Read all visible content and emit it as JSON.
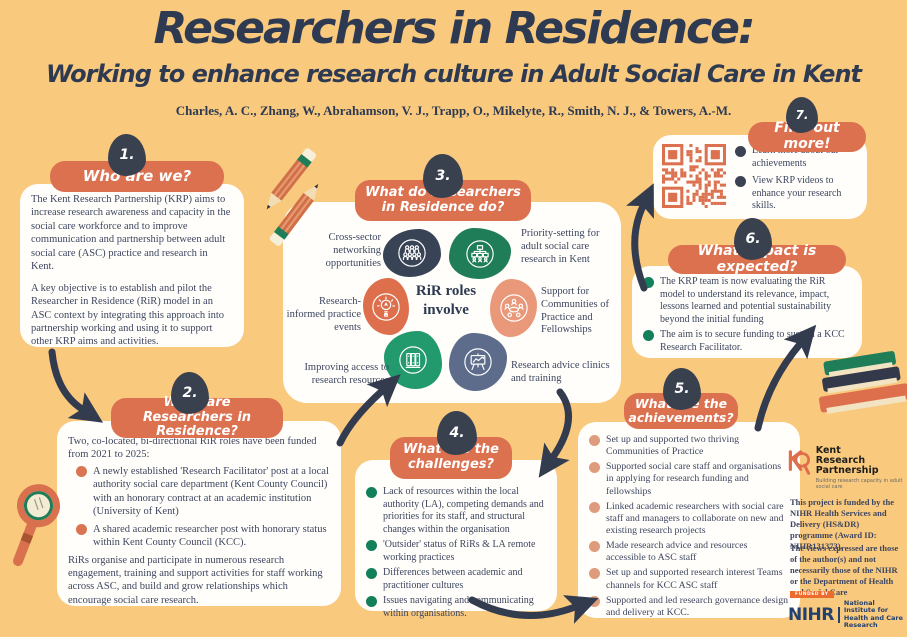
{
  "poster": {
    "title": "Researchers in Residence:",
    "subtitle": "Working to enhance research culture in Adult Social Care in Kent",
    "authors": "Charles, A. C., Zhang, W., Abrahamson, V. J., Trapp, O., Mikelyte, R., Smith, N. J., & Towers, A.-M."
  },
  "colors": {
    "background": "#F9C97E",
    "terracotta": "#DC7150",
    "navy": "#39414F",
    "green": "#1F7D58",
    "salmon": "#E9987A",
    "blue_grey": "#5C6C8A"
  },
  "sections": {
    "who": {
      "number": "1.",
      "heading": "Who are we?",
      "para1": "The Kent Research Partnership (KRP) aims to increase research awareness and capacity in the social care workforce and to improve communication and partnership between adult social care (ASC) practice and research in Kent.",
      "para2": "A key objective is to establish and pilot the Researcher in Residence (RiR) model in an ASC context by integrating this approach into partnership working and using it to support other KRP aims and activities."
    },
    "roles": {
      "number": "2.",
      "heading": "What are Researchers in Residence?",
      "intro": "Two, co-located, bi-directional RiR roles have been funded from 2021 to 2025:",
      "bullets": [
        "A newly established 'Research Facilitator' post at a local authority social care department (Kent County Council) with an honorary contract at an academic institution (University of Kent)",
        "A shared academic researcher post with honorary status within Kent County Council (KCC)."
      ],
      "outro": "RiRs organise and participate in numerous research engagement, training and support activities for staff working across ASC, and build and grow relationships which encourage social care research."
    },
    "activities": {
      "number": "3.",
      "heading": "What do Researchers in Residence do?",
      "center": "RiR roles involve",
      "items": [
        {
          "label": "Cross-sector networking opportunities",
          "icon": "crowd-icon"
        },
        {
          "label": "Priority-setting for adult social care research in Kent",
          "icon": "org-chart-icon"
        },
        {
          "label": "Research-informed practice events",
          "icon": "lightbulb-icon"
        },
        {
          "label": "Support for Communities of Practice and Fellowships",
          "icon": "community-icon"
        },
        {
          "label": "Improving access to research resources",
          "icon": "books-icon"
        },
        {
          "label": "Research advice clinics and training",
          "icon": "presentation-icon"
        }
      ]
    },
    "challenges": {
      "number": "4.",
      "heading": "What are the challenges?",
      "bullets": [
        "Lack of resources within the local authority (LA), competing demands and priorities for its staff, and structural changes within the organisation",
        "'Outsider' status of RiRs & LA remote working practices",
        "Differences between academic and practitioner cultures",
        "Issues navigating and communicating within organisations."
      ]
    },
    "achievements": {
      "number": "5.",
      "heading": "What are the achievements?",
      "bullets": [
        "Set up and supported two thriving Communities of Practice",
        "Supported social care staff and organisations in applying for research funding and fellowships",
        "Linked academic researchers with social care staff and managers to collaborate on new and existing research projects",
        "Made research advice and resources accessible to ASC staff",
        "Set up and supported research interest Teams channels for KCC ASC staff",
        "Supported and led research governance design and delivery at KCC."
      ]
    },
    "impact": {
      "number": "6.",
      "heading": "What Impact is expected?",
      "bullets": [
        "The KRP team is now evaluating the RiR model to understand its relevance, impact, lessons learned and potential sustainability beyond the initial funding",
        "The aim is to secure funding to sustain a KCC Research Facilitator."
      ]
    },
    "more": {
      "number": "7.",
      "heading": "Find out more!",
      "bullets": [
        "Learn more about our achievements",
        "View KRP videos to enhance your research skills."
      ]
    }
  },
  "footer": {
    "krp_name": "Kent Research Partnership",
    "krp_tagline": "Building research capacity in adult social care",
    "funding": "This project is funded by the NIHR Health Services and Delivery (HS&DR) programme (Award ID: NIHR131373).",
    "disclaimer": "The views expressed are those of the author(s) and not necessarily those of the NIHR or the Department of Health and Social Care",
    "funded_by": "FUNDED BY",
    "nihr_abbr": "NIHR",
    "nihr_name": "National Institute for Health and Care Research"
  }
}
